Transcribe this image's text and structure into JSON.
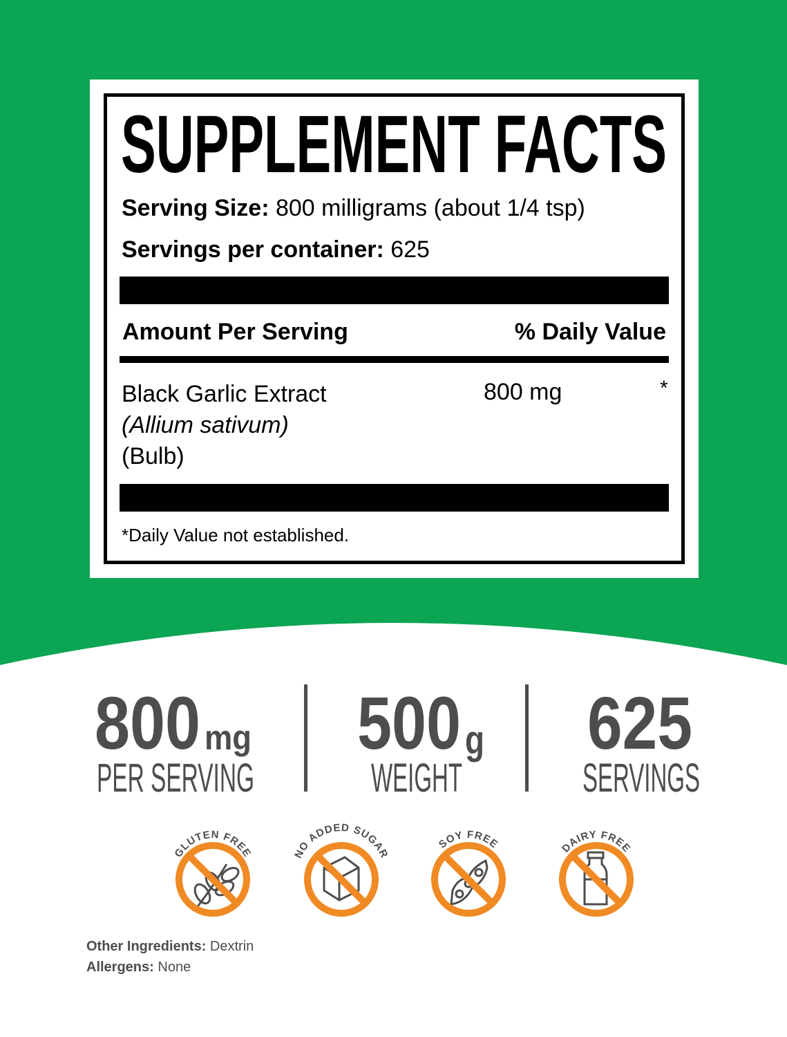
{
  "colors": {
    "green": "#0ba553",
    "orange": "#f08a24",
    "gray": "#4d4d4d"
  },
  "facts": {
    "title": "SUPPLEMENT FACTS",
    "serving_size_label": "Serving Size:",
    "serving_size_value": "800 milligrams (about 1/4 tsp)",
    "servings_label": "Servings per container:",
    "servings_value": "625",
    "amount_header": "Amount Per Serving",
    "dv_header": "% Daily Value",
    "ingredient": {
      "name": "Black Garlic Extract",
      "latin": "(Allium sativum)",
      "part": "(Bulb)",
      "amount": "800 mg",
      "dv": "*"
    },
    "footnote": "*Daily Value not established."
  },
  "stats": [
    {
      "value": "800",
      "unit": "mg",
      "label": "PER SERVING"
    },
    {
      "value": "500",
      "unit": "g",
      "label": "WEIGHT"
    },
    {
      "value": "625",
      "unit": "",
      "label": "SERVINGS"
    }
  ],
  "badges": [
    {
      "label": "GLUTEN FREE",
      "icon": "wheat-icon"
    },
    {
      "label": "NO ADDED SUGAR",
      "icon": "sugar-cube-icon"
    },
    {
      "label": "SOY FREE",
      "icon": "soybean-icon"
    },
    {
      "label": "DAIRY FREE",
      "icon": "milk-bottle-icon"
    }
  ],
  "footer": {
    "other_label": "Other Ingredients:",
    "other_value": "Dextrin",
    "allergens_label": "Allergens:",
    "allergens_value": "None"
  }
}
